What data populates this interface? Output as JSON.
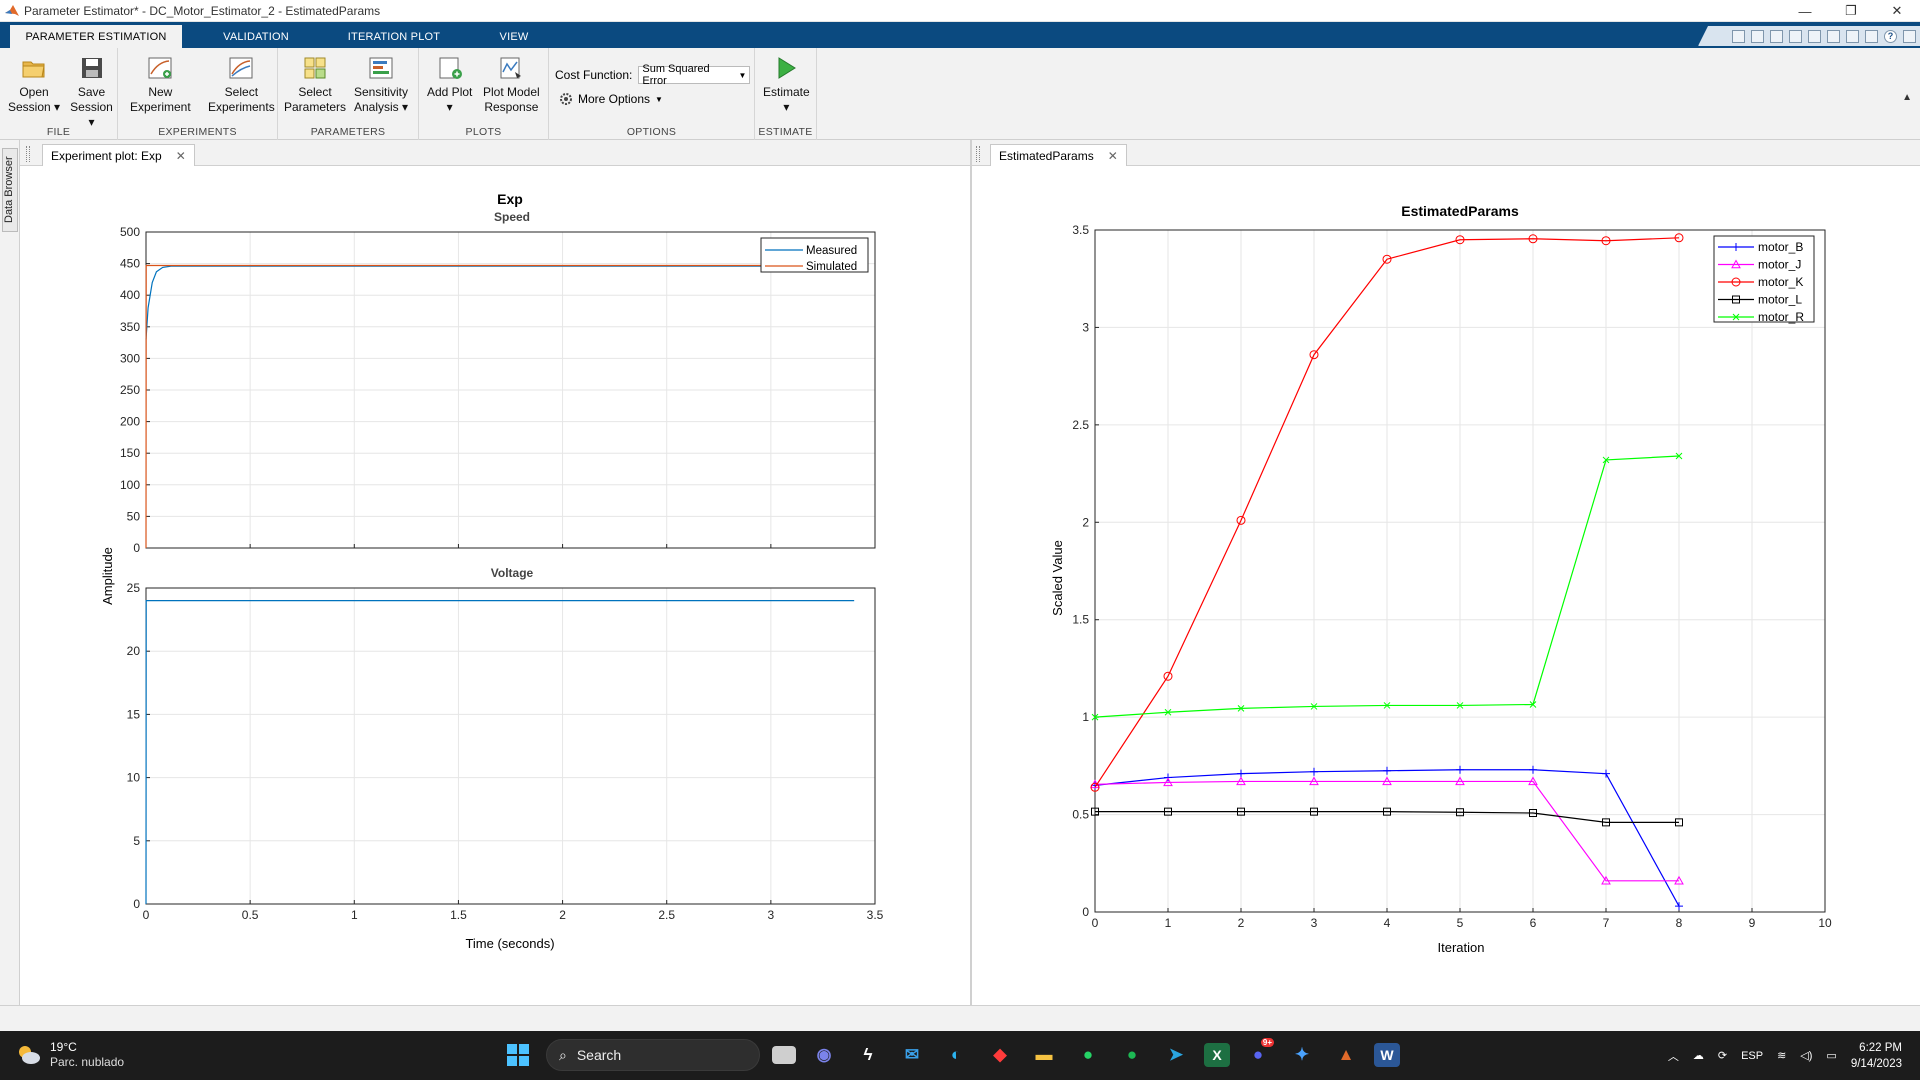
{
  "window": {
    "title": "Parameter Estimator* - DC_Motor_Estimator_2 - EstimatedParams",
    "controls": {
      "minimize": "—",
      "restore": "❐",
      "close": "✕"
    }
  },
  "tabs": [
    {
      "label": "PARAMETER ESTIMATION",
      "active": true
    },
    {
      "label": "VALIDATION",
      "active": false
    },
    {
      "label": "ITERATION PLOT",
      "active": false
    },
    {
      "label": "VIEW",
      "active": false
    }
  ],
  "toolstrip": {
    "file": {
      "group_label": "FILE",
      "open_session": "Open\nSession ▾",
      "save_session": "Save\nSession ▾"
    },
    "experiments": {
      "group_label": "EXPERIMENTS",
      "new_experiment": "New\nExperiment",
      "select_experiments": "Select\nExperiments"
    },
    "parameters": {
      "group_label": "PARAMETERS",
      "select_parameters": "Select\nParameters",
      "sensitivity_analysis": "Sensitivity\nAnalysis ▾"
    },
    "plots": {
      "group_label": "PLOTS",
      "add_plot": "Add Plot\n▾",
      "plot_model_response": "Plot Model\nResponse"
    },
    "options": {
      "group_label": "OPTIONS",
      "cost_function_label": "Cost Function:",
      "cost_function_value": "Sum Squared Error",
      "more_options": "More Options"
    },
    "estimate": {
      "group_label": "ESTIMATE",
      "estimate": "Estimate\n▾"
    }
  },
  "side_browser": {
    "label": "Data Browser"
  },
  "left_panel": {
    "tab_label": "Experiment plot: Exp",
    "figure_title": "Exp",
    "ylabel": "Amplitude",
    "xlabel": "Time (seconds)",
    "x_ticks": [
      "0",
      "0.5",
      "1",
      "1.5",
      "2",
      "2.5",
      "3",
      "3.5"
    ],
    "speed": {
      "title": "Speed",
      "y_ticks": [
        "0",
        "50",
        "100",
        "150",
        "200",
        "250",
        "300",
        "350",
        "400",
        "450",
        "500"
      ],
      "legend": [
        "Measured",
        "Simulated"
      ]
    },
    "voltage": {
      "title": "Voltage",
      "y_ticks": [
        "0",
        "5",
        "10",
        "15",
        "20",
        "25"
      ]
    }
  },
  "right_panel": {
    "tab_label": "EstimatedParams"
  },
  "colors": {
    "measured": "#0072bd",
    "simulated": "#d95319",
    "motor_B": "#0000ff",
    "motor_J": "#ff00ff",
    "motor_K": "#ff0000",
    "motor_L": "#000000",
    "motor_R": "#00ff00",
    "tab_bar": "#0b4a80"
  },
  "chart_data": [
    {
      "type": "line",
      "title": "Speed",
      "xlabel": "Time (seconds)",
      "ylabel": "Amplitude",
      "xlim": [
        0,
        3.5
      ],
      "ylim": [
        0,
        500
      ],
      "grid": true,
      "legend_position": "top-right",
      "series": [
        {
          "name": "Measured",
          "x": [
            0,
            0.01,
            0.03,
            0.05,
            0.08,
            0.12,
            3.0
          ],
          "y": [
            330,
            380,
            420,
            437,
            444,
            446,
            446
          ]
        },
        {
          "name": "Simulated",
          "x": [
            0,
            0.001,
            3.0
          ],
          "y": [
            0,
            447,
            447
          ]
        }
      ]
    },
    {
      "type": "line",
      "title": "Voltage",
      "xlabel": "Time (seconds)",
      "ylabel": "Amplitude",
      "xlim": [
        0,
        3.5
      ],
      "ylim": [
        0,
        25
      ],
      "grid": true,
      "series": [
        {
          "name": "Voltage",
          "x": [
            0,
            0.001,
            3.4
          ],
          "y": [
            0,
            24,
            24
          ]
        }
      ]
    },
    {
      "type": "line",
      "title": "EstimatedParams",
      "xlabel": "Iteration",
      "ylabel": "Scaled Value",
      "xlim": [
        0,
        10
      ],
      "ylim": [
        0,
        3.5
      ],
      "x_ticks": [
        "0",
        "1",
        "2",
        "3",
        "4",
        "5",
        "6",
        "7",
        "8",
        "9",
        "10"
      ],
      "y_ticks": [
        "0",
        "0.5",
        "1",
        "1.5",
        "2",
        "2.5",
        "3",
        "3.5"
      ],
      "grid": true,
      "legend_position": "top-right",
      "x": [
        0,
        1,
        2,
        3,
        4,
        5,
        6,
        7,
        8
      ],
      "series": [
        {
          "name": "motor_B",
          "marker": "+",
          "values": [
            0.65,
            0.69,
            0.71,
            0.72,
            0.725,
            0.73,
            0.73,
            0.71,
            0.03
          ]
        },
        {
          "name": "motor_J",
          "marker": "triangle",
          "values": [
            0.655,
            0.665,
            0.67,
            0.67,
            0.67,
            0.67,
            0.67,
            0.16,
            0.16
          ]
        },
        {
          "name": "motor_K",
          "marker": "circle",
          "values": [
            0.64,
            1.21,
            2.01,
            2.86,
            3.35,
            3.45,
            3.455,
            3.445,
            3.46
          ]
        },
        {
          "name": "motor_L",
          "marker": "square",
          "values": [
            0.515,
            0.515,
            0.515,
            0.515,
            0.515,
            0.512,
            0.508,
            0.46,
            0.46
          ]
        },
        {
          "name": "motor_R",
          "marker": "x",
          "values": [
            1.0,
            1.025,
            1.045,
            1.055,
            1.06,
            1.06,
            1.065,
            2.32,
            2.34
          ]
        }
      ]
    }
  ],
  "taskbar": {
    "weather_temp": "19°C",
    "weather_cond": "Parc. nublado",
    "search_placeholder": "Search",
    "language": "ESP",
    "time": "6:22 PM",
    "date": "9/14/2023",
    "notification_badge": "9+"
  }
}
